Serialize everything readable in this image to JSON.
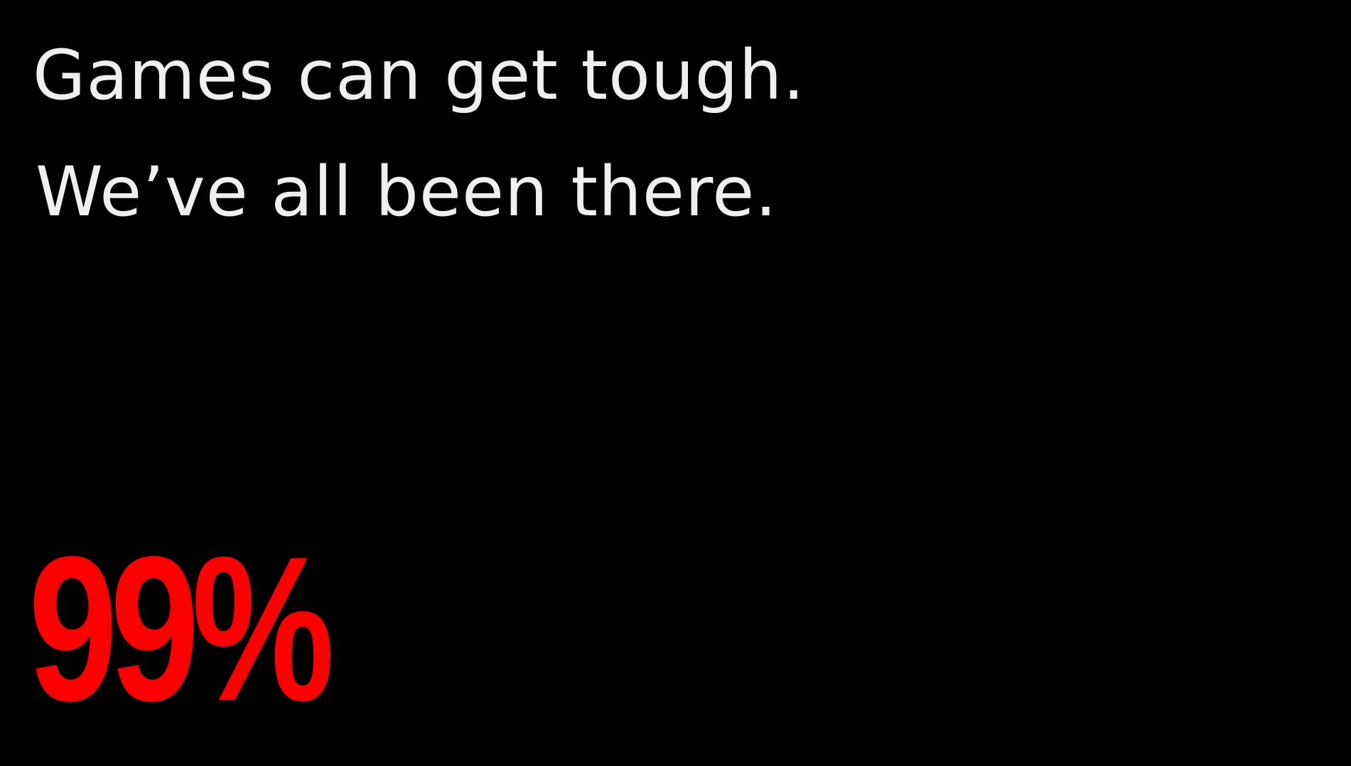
{
  "slide": {
    "line1": "Games can get tough.",
    "line2": "We’ve all been there.",
    "stat": "99%"
  },
  "colors": {
    "background": "#000000",
    "text": "#efefef",
    "accent": "#ff0000"
  }
}
